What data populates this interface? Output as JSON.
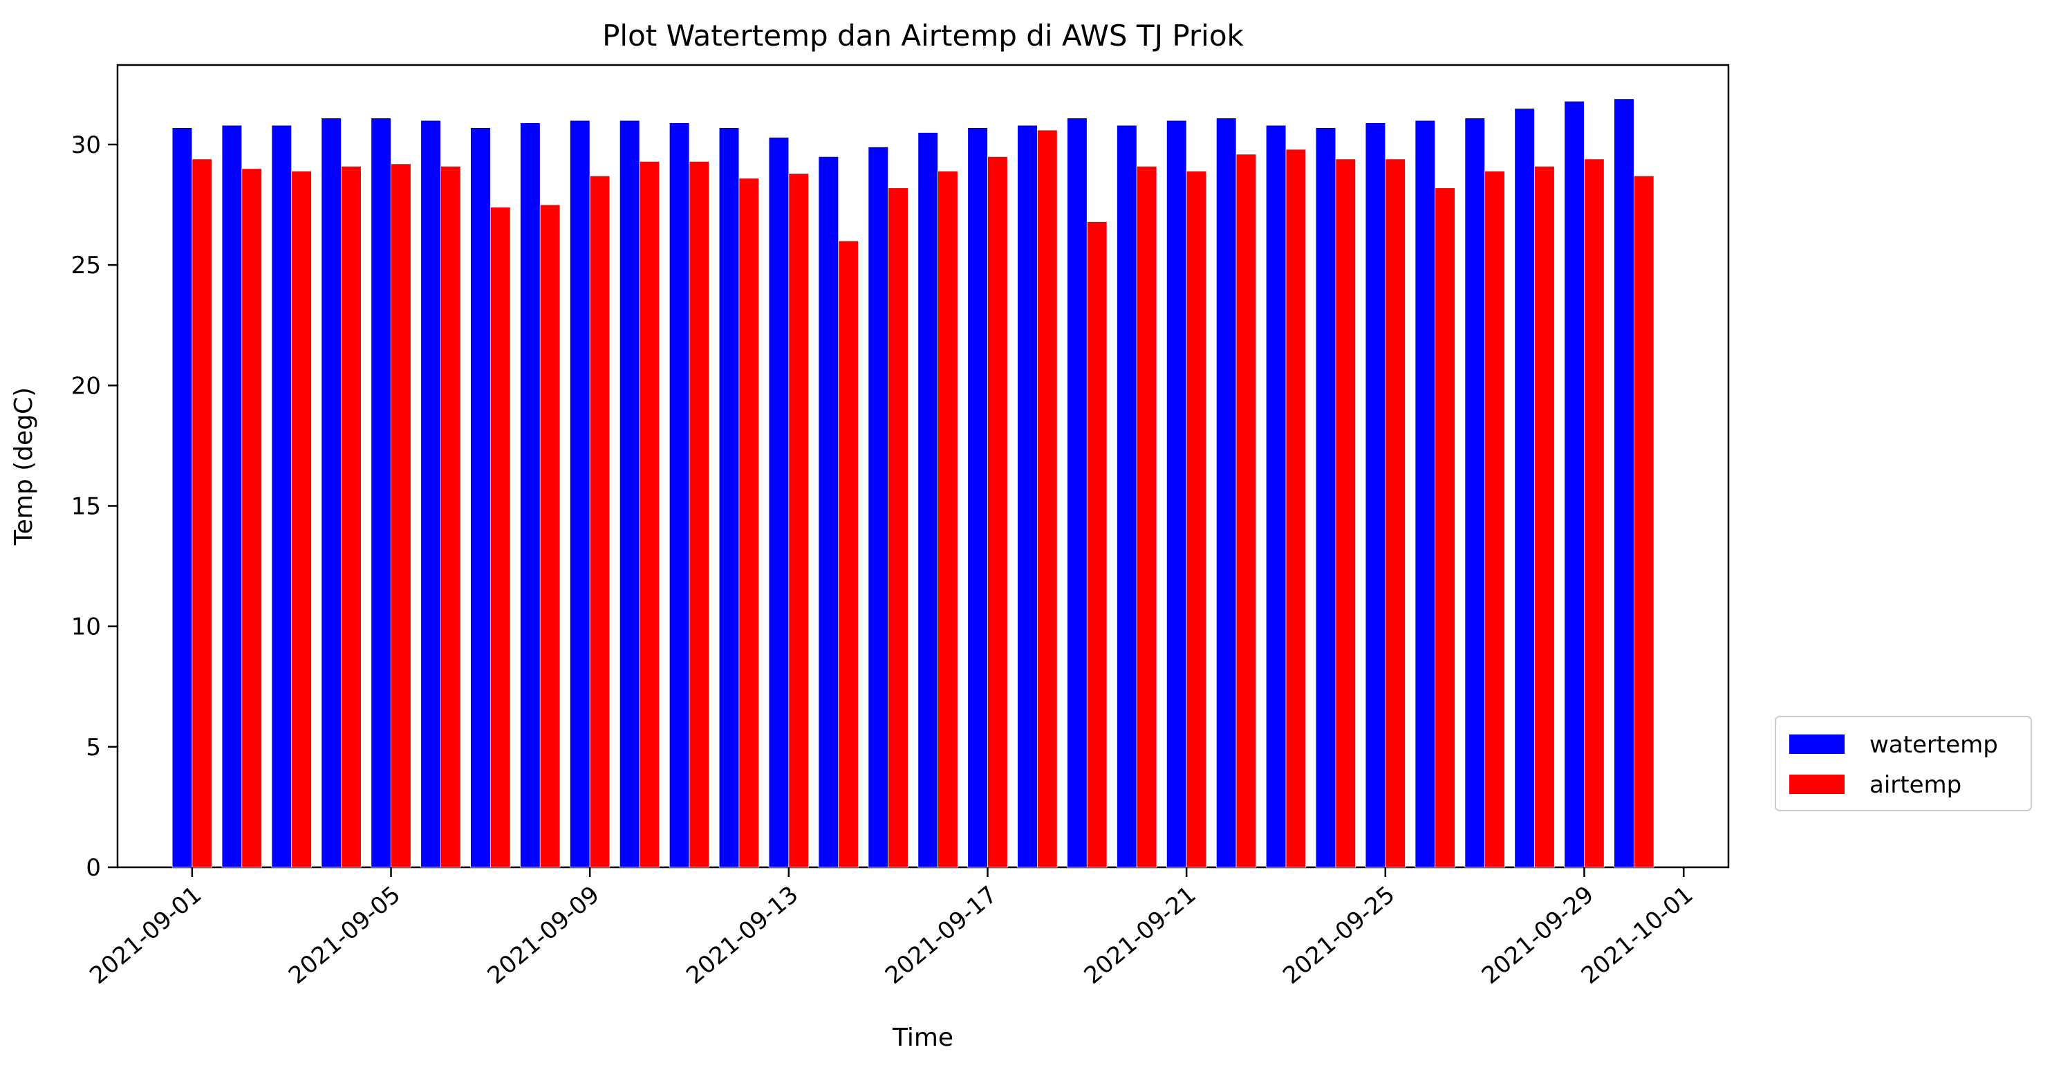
{
  "chart_data": {
    "type": "bar",
    "title": "Plot Watertemp dan Airtemp di AWS TJ Priok",
    "xlabel": "Time",
    "ylabel": "Temp (degC)",
    "x": [
      "2021-09-01",
      "2021-09-02",
      "2021-09-03",
      "2021-09-04",
      "2021-09-05",
      "2021-09-06",
      "2021-09-07",
      "2021-09-08",
      "2021-09-09",
      "2021-09-10",
      "2021-09-11",
      "2021-09-12",
      "2021-09-13",
      "2021-09-14",
      "2021-09-15",
      "2021-09-16",
      "2021-09-17",
      "2021-09-18",
      "2021-09-19",
      "2021-09-20",
      "2021-09-21",
      "2021-09-22",
      "2021-09-23",
      "2021-09-24",
      "2021-09-25",
      "2021-09-26",
      "2021-09-27",
      "2021-09-28",
      "2021-09-29",
      "2021-09-30"
    ],
    "series": [
      {
        "name": "watertemp",
        "color": "#0000ff",
        "values": [
          30.7,
          30.8,
          30.8,
          31.1,
          31.1,
          31.0,
          30.7,
          30.9,
          31.0,
          31.0,
          30.9,
          30.7,
          30.3,
          29.5,
          29.9,
          30.5,
          30.7,
          30.8,
          31.1,
          30.8,
          31.0,
          31.1,
          30.8,
          30.7,
          30.9,
          31.0,
          31.1,
          31.5,
          31.8,
          31.9
        ]
      },
      {
        "name": "airtemp",
        "color": "#ff0000",
        "values": [
          29.4,
          29.0,
          28.9,
          29.1,
          29.2,
          29.1,
          27.4,
          27.5,
          28.7,
          29.3,
          29.3,
          28.6,
          28.8,
          26.0,
          28.2,
          28.9,
          29.5,
          30.6,
          26.8,
          29.1,
          28.9,
          29.6,
          29.8,
          29.4,
          29.4,
          28.2,
          28.9,
          29.1,
          29.4,
          28.7
        ]
      }
    ],
    "xticks": [
      "2021-09-01",
      "2021-09-05",
      "2021-09-09",
      "2021-09-13",
      "2021-09-17",
      "2021-09-21",
      "2021-09-25",
      "2021-09-29",
      "2021-10-01"
    ],
    "yticks": [
      "0",
      "5",
      "10",
      "15",
      "20",
      "25",
      "30"
    ],
    "ylim": [
      0,
      33.3
    ],
    "xlim": [
      "2021-08-30T12:00",
      "2021-10-01T21:36"
    ],
    "legend_position": "outside-right-bottom",
    "grid": false
  }
}
